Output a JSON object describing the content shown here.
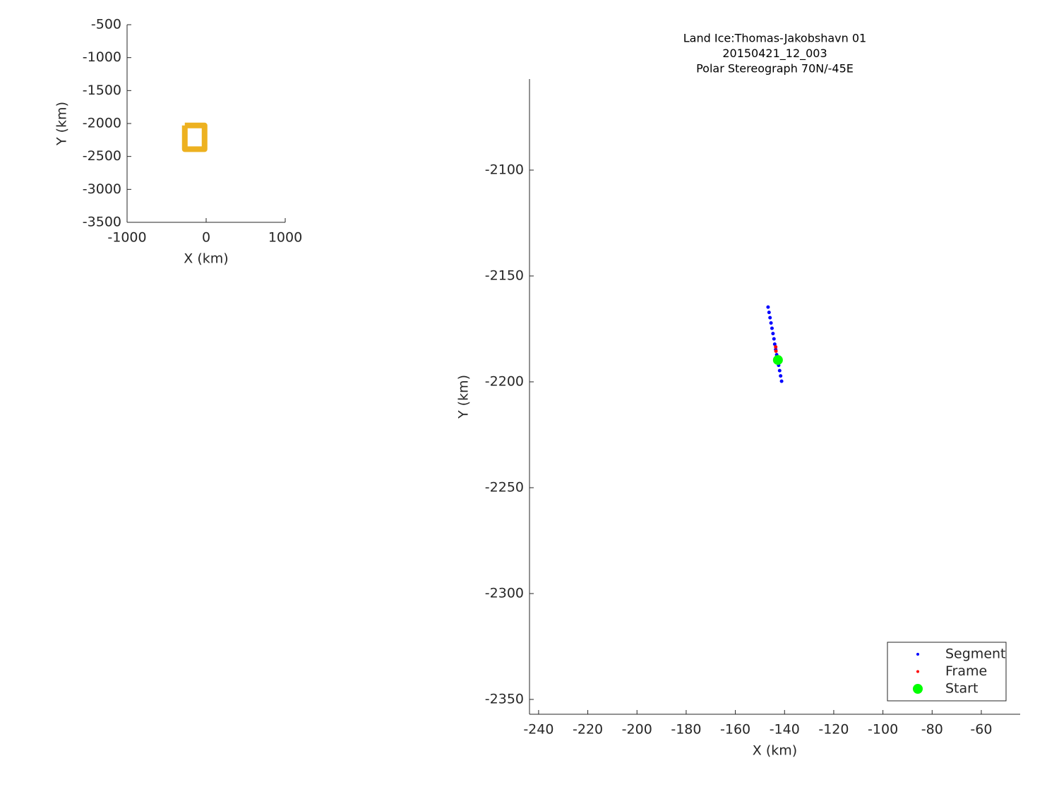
{
  "chart_data": [
    {
      "type": "line",
      "xlabel": "X (km)",
      "ylabel": "Y (km)",
      "xlim": [
        -1000,
        1000
      ],
      "ylim": [
        -3500,
        -500
      ],
      "xticks": [
        -1000,
        0,
        1000
      ],
      "yticks": [
        -500,
        -1000,
        -1500,
        -2000,
        -2500,
        -3000,
        -3500
      ],
      "series": [
        {
          "color": "#edb120",
          "x": [
            -270,
            -20,
            -20,
            -270,
            -270
          ],
          "y": [
            -2030,
            -2030,
            -2390,
            -2390,
            -2030
          ]
        }
      ]
    },
    {
      "type": "scatter",
      "title": [
        "Land Ice:Thomas-Jakobshavn 01",
        "20150421_12_003",
        "Polar Stereograph 70N/-45E"
      ],
      "xlabel": "X (km)",
      "ylabel": "Y (km)",
      "xlim": [
        -243.7,
        -44.2
      ],
      "ylim": [
        -2357,
        -2057
      ],
      "xticks": [
        -240,
        -220,
        -200,
        -180,
        -160,
        -140,
        -120,
        -100,
        -80,
        -60
      ],
      "yticks": [
        -2100,
        -2150,
        -2200,
        -2250,
        -2300,
        -2350
      ],
      "legend": "southeast",
      "series": [
        {
          "name": "Segment",
          "color": "#0000ff",
          "marker_size": 2.5,
          "x": [
            -146.7,
            -146.3,
            -145.9,
            -145.5,
            -145.1,
            -144.7,
            -144.3,
            -144.0,
            -143.6,
            -143.2,
            -142.8,
            -142.4,
            -142.0,
            -141.6,
            -141.2
          ],
          "y": [
            -2164.7,
            -2167.2,
            -2169.7,
            -2172.2,
            -2174.7,
            -2177.2,
            -2179.7,
            -2182.2,
            -2184.7,
            -2187.2,
            -2189.7,
            -2192.2,
            -2194.7,
            -2197.2,
            -2199.7
          ]
        },
        {
          "name": "Frame",
          "color": "#ff0000",
          "marker_size": 2.5,
          "x": [
            -143.6,
            -143.5
          ],
          "y": [
            -2183.5,
            -2185.5
          ]
        },
        {
          "name": "Start",
          "color": "#00ff00",
          "marker_size": 7,
          "x": [
            -142.7
          ],
          "y": [
            -2189.7
          ]
        }
      ]
    }
  ]
}
